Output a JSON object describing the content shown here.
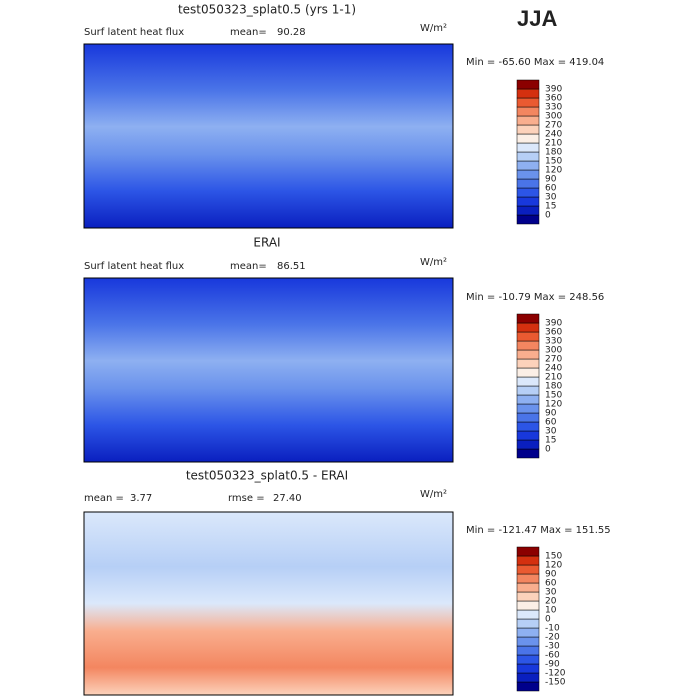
{
  "header": {
    "season": "JJA"
  },
  "panels": [
    {
      "title": "test050323_splat0.5 (yrs 1-1)",
      "field": "Surf latent heat flux",
      "mean_label": "mean=",
      "mean": "90.28",
      "units": "W/m²",
      "range": "Min = -65.60 Max = 419.04",
      "colorbar": {
        "labels": [
          0,
          15,
          30,
          60,
          90,
          120,
          150,
          180,
          210,
          240,
          270,
          300,
          330,
          360,
          390
        ],
        "colors": [
          "#00008b",
          "#0a1fbf",
          "#1838dc",
          "#2c55e6",
          "#4a74e8",
          "#6a92ec",
          "#8eb0f1",
          "#b6cff6",
          "#dbe8fb",
          "#fbefe6",
          "#fcd2bb",
          "#f9ae8e",
          "#f38660",
          "#ea5a31",
          "#d4300f",
          "#8b0000"
        ]
      }
    },
    {
      "title": "ERAI",
      "field": "Surf latent heat flux",
      "mean_label": "mean=",
      "mean": "86.51",
      "units": "W/m²",
      "range": "Min = -10.79 Max = 248.56",
      "colorbar": {
        "labels": [
          0,
          15,
          30,
          60,
          90,
          120,
          150,
          180,
          210,
          240,
          270,
          300,
          330,
          360,
          390
        ],
        "colors": [
          "#00008b",
          "#0a1fbf",
          "#1838dc",
          "#2c55e6",
          "#4a74e8",
          "#6a92ec",
          "#8eb0f1",
          "#b6cff6",
          "#dbe8fb",
          "#fbefe6",
          "#fcd2bb",
          "#f9ae8e",
          "#f38660",
          "#ea5a31",
          "#d4300f",
          "#8b0000"
        ]
      }
    },
    {
      "title": "test050323_splat0.5 - ERAI",
      "mean_label": "mean =",
      "mean": "3.77",
      "rmse_label": "rmse =",
      "rmse": "27.40",
      "units": "W/m²",
      "range": "Min = -121.47 Max = 151.55",
      "colorbar": {
        "labels": [
          -150,
          -120,
          -90,
          -60,
          -30,
          -20,
          -10,
          0,
          10,
          20,
          30,
          60,
          90,
          120,
          150
        ],
        "colors": [
          "#00008b",
          "#0a1fbf",
          "#1838dc",
          "#2c55e6",
          "#4a74e8",
          "#6a92ec",
          "#8eb0f1",
          "#b6cff6",
          "#dbe8fb",
          "#fbefe6",
          "#fcd2bb",
          "#f9ae8e",
          "#f38660",
          "#ea5a31",
          "#d4300f",
          "#8b0000"
        ]
      }
    }
  ]
}
